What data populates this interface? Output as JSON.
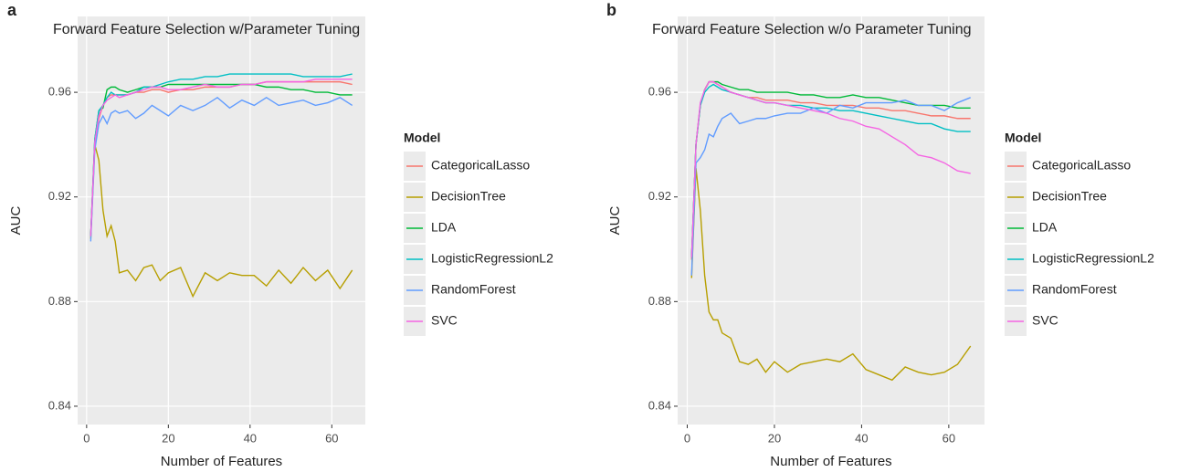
{
  "chart_data": [
    {
      "type": "line",
      "label": "a",
      "title": "Forward Feature Selection w/Parameter Tuning",
      "x_label": "Number of Features",
      "y_label": "AUC",
      "legend_title": "Model",
      "legend": "right",
      "grid": true,
      "xlim": [
        -2.2,
        68.2
      ],
      "ylim": [
        0.833,
        0.989
      ],
      "xticks": [
        0,
        20,
        40,
        60
      ],
      "yticks": [
        0.84,
        0.88,
        0.92,
        0.96
      ],
      "x": [
        1,
        2,
        3,
        4,
        5,
        6,
        7,
        8,
        10,
        12,
        14,
        16,
        18,
        20,
        23,
        26,
        29,
        32,
        35,
        38,
        41,
        44,
        47,
        50,
        53,
        56,
        59,
        62,
        65
      ],
      "series": [
        {
          "name": "CategoricalLasso",
          "color": "#F8766D",
          "values": [
            0.905,
            0.94,
            0.95,
            0.955,
            0.958,
            0.959,
            0.959,
            0.959,
            0.959,
            0.96,
            0.96,
            0.961,
            0.961,
            0.96,
            0.961,
            0.961,
            0.962,
            0.962,
            0.962,
            0.963,
            0.963,
            0.964,
            0.964,
            0.964,
            0.964,
            0.964,
            0.964,
            0.964,
            0.963
          ]
        },
        {
          "name": "DecisionTree",
          "color": "#B79F00",
          "values": [
            0.904,
            0.94,
            0.934,
            0.915,
            0.905,
            0.909,
            0.903,
            0.891,
            0.892,
            0.888,
            0.893,
            0.894,
            0.888,
            0.891,
            0.893,
            0.882,
            0.891,
            0.888,
            0.891,
            0.89,
            0.89,
            0.886,
            0.892,
            0.887,
            0.893,
            0.888,
            0.892,
            0.885,
            0.892
          ]
        },
        {
          "name": "LDA",
          "color": "#00BA38",
          "values": [
            0.905,
            0.942,
            0.953,
            0.954,
            0.961,
            0.962,
            0.962,
            0.961,
            0.96,
            0.961,
            0.962,
            0.962,
            0.962,
            0.963,
            0.963,
            0.963,
            0.963,
            0.963,
            0.963,
            0.963,
            0.963,
            0.962,
            0.962,
            0.961,
            0.961,
            0.96,
            0.96,
            0.959,
            0.959
          ]
        },
        {
          "name": "LogisticRegressionL2",
          "color": "#00BFC4",
          "values": [
            0.905,
            0.942,
            0.953,
            0.955,
            0.958,
            0.96,
            0.959,
            0.959,
            0.959,
            0.96,
            0.962,
            0.962,
            0.963,
            0.964,
            0.965,
            0.965,
            0.966,
            0.966,
            0.967,
            0.967,
            0.967,
            0.967,
            0.967,
            0.967,
            0.966,
            0.966,
            0.966,
            0.966,
            0.967
          ]
        },
        {
          "name": "RandomForest",
          "color": "#619CFF",
          "values": [
            0.903,
            0.938,
            0.948,
            0.951,
            0.948,
            0.952,
            0.953,
            0.952,
            0.953,
            0.95,
            0.952,
            0.955,
            0.953,
            0.951,
            0.955,
            0.953,
            0.955,
            0.958,
            0.954,
            0.957,
            0.955,
            0.958,
            0.955,
            0.956,
            0.957,
            0.955,
            0.956,
            0.958,
            0.955
          ]
        },
        {
          "name": "SVC",
          "color": "#F564E3",
          "values": [
            0.905,
            0.941,
            0.951,
            0.955,
            0.957,
            0.958,
            0.959,
            0.958,
            0.959,
            0.96,
            0.961,
            0.962,
            0.962,
            0.961,
            0.961,
            0.962,
            0.963,
            0.962,
            0.962,
            0.963,
            0.963,
            0.964,
            0.964,
            0.964,
            0.964,
            0.965,
            0.965,
            0.965,
            0.965
          ]
        }
      ]
    },
    {
      "type": "line",
      "label": "b",
      "title": "Forward Feature Selection w/o Parameter Tuning",
      "x_label": "Number of Features",
      "y_label": "AUC",
      "legend_title": "Model",
      "legend": "right",
      "grid": true,
      "xlim": [
        -2.2,
        68.2
      ],
      "ylim": [
        0.833,
        0.989
      ],
      "xticks": [
        0,
        20,
        40,
        60
      ],
      "yticks": [
        0.84,
        0.88,
        0.92,
        0.96
      ],
      "x": [
        1,
        2,
        3,
        4,
        5,
        6,
        7,
        8,
        10,
        12,
        14,
        16,
        18,
        20,
        23,
        26,
        29,
        32,
        35,
        38,
        41,
        44,
        47,
        50,
        53,
        56,
        59,
        62,
        65
      ],
      "series": [
        {
          "name": "CategoricalLasso",
          "color": "#F8766D",
          "values": [
            0.896,
            0.94,
            0.955,
            0.961,
            0.964,
            0.964,
            0.963,
            0.962,
            0.96,
            0.959,
            0.958,
            0.958,
            0.957,
            0.957,
            0.957,
            0.956,
            0.956,
            0.955,
            0.955,
            0.955,
            0.954,
            0.954,
            0.953,
            0.953,
            0.952,
            0.951,
            0.951,
            0.95,
            0.95
          ]
        },
        {
          "name": "DecisionTree",
          "color": "#B79F00",
          "values": [
            0.889,
            0.931,
            0.915,
            0.89,
            0.876,
            0.873,
            0.873,
            0.868,
            0.866,
            0.857,
            0.856,
            0.858,
            0.853,
            0.857,
            0.853,
            0.856,
            0.857,
            0.858,
            0.857,
            0.86,
            0.854,
            0.852,
            0.85,
            0.855,
            0.853,
            0.852,
            0.853,
            0.856,
            0.863
          ]
        },
        {
          "name": "LDA",
          "color": "#00BA38",
          "values": [
            0.897,
            0.94,
            0.955,
            0.961,
            0.964,
            0.964,
            0.964,
            0.963,
            0.962,
            0.961,
            0.961,
            0.96,
            0.96,
            0.96,
            0.96,
            0.959,
            0.959,
            0.958,
            0.958,
            0.959,
            0.958,
            0.958,
            0.957,
            0.956,
            0.955,
            0.955,
            0.955,
            0.954,
            0.954
          ]
        },
        {
          "name": "LogisticRegressionL2",
          "color": "#00BFC4",
          "values": [
            0.897,
            0.94,
            0.955,
            0.96,
            0.962,
            0.963,
            0.962,
            0.961,
            0.96,
            0.959,
            0.958,
            0.957,
            0.956,
            0.956,
            0.955,
            0.955,
            0.954,
            0.954,
            0.953,
            0.953,
            0.952,
            0.951,
            0.95,
            0.949,
            0.948,
            0.948,
            0.946,
            0.945,
            0.945
          ]
        },
        {
          "name": "RandomForest",
          "color": "#619CFF",
          "values": [
            0.89,
            0.933,
            0.935,
            0.938,
            0.944,
            0.943,
            0.947,
            0.95,
            0.952,
            0.948,
            0.949,
            0.95,
            0.95,
            0.951,
            0.952,
            0.952,
            0.954,
            0.952,
            0.955,
            0.954,
            0.956,
            0.956,
            0.956,
            0.957,
            0.955,
            0.955,
            0.953,
            0.956,
            0.958
          ]
        },
        {
          "name": "SVC",
          "color": "#F564E3",
          "values": [
            0.897,
            0.94,
            0.956,
            0.961,
            0.964,
            0.964,
            0.963,
            0.962,
            0.96,
            0.959,
            0.958,
            0.957,
            0.956,
            0.956,
            0.955,
            0.954,
            0.953,
            0.952,
            0.95,
            0.949,
            0.947,
            0.946,
            0.943,
            0.94,
            0.936,
            0.935,
            0.933,
            0.93,
            0.929
          ]
        }
      ]
    }
  ]
}
